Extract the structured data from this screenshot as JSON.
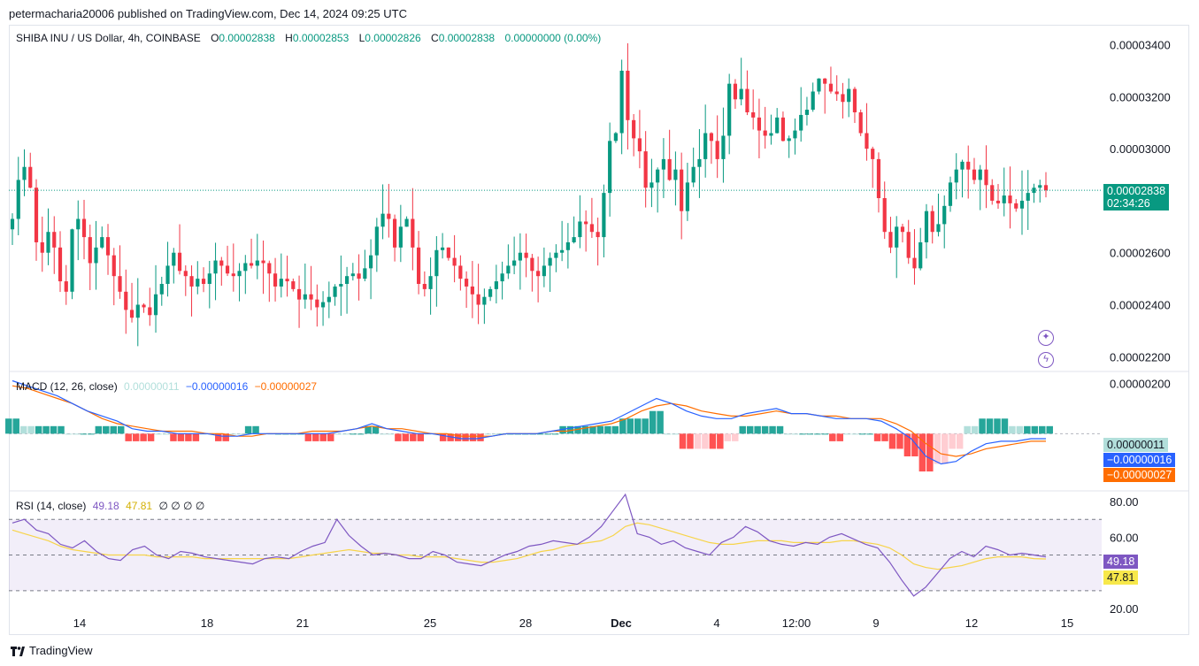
{
  "header": {
    "published": "petermacharia20006 published on TradingView.com, Dec 14, 2024 09:25 UTC"
  },
  "symbol": {
    "title": "SHIBA INU / US Dollar, 4h, COINBASE",
    "o_label": "O",
    "o": "0.00002838",
    "h_label": "H",
    "h": "0.00002853",
    "l_label": "L",
    "l": "0.00002826",
    "c_label": "C",
    "c": "0.00002838",
    "change": "0.00000000 (0.00%)"
  },
  "price_axis": {
    "ticks": [
      "0.00003400",
      "0.00003200",
      "0.00003000",
      "0.00002600",
      "0.00002400",
      "0.00002200"
    ],
    "last_price": "0.00002838",
    "countdown": "02:34:26"
  },
  "macd": {
    "title": "MACD (12, 26, close)",
    "hist": "0.00000011",
    "macd": "−0.00000016",
    "signal": "−0.00000027",
    "axis_tick": "0.00000200",
    "box_hist": "0.00000011",
    "box_macd": "−0.00000016",
    "box_signal": "−0.00000027"
  },
  "rsi": {
    "title": "RSI (14, close)",
    "value": "49.18",
    "ma": "47.81",
    "placeholders": "∅ ∅ ∅ ∅",
    "ticks": [
      "80.00",
      "60.00",
      "20.00"
    ],
    "box_value": "49.18",
    "box_ma": "47.81"
  },
  "time_axis": [
    "14",
    "18",
    "21",
    "25",
    "28",
    "Dec",
    "4",
    "12:00",
    "9",
    "12",
    "15"
  ],
  "footer": {
    "brand": "TradingView"
  },
  "colors": {
    "up": "#089981",
    "down": "#f23645",
    "macd": "#2962ff",
    "signal": "#ff6d00",
    "rsi": "#7e57c2",
    "rsi_ma": "#f7d44a",
    "hist_up_strong": "#26a69a",
    "hist_up_weak": "#b2dfdb",
    "hist_down_strong": "#ff5252",
    "hist_down_weak": "#ffcdd2"
  },
  "chart_data": [
    {
      "type": "candlestick",
      "title": "SHIBA INU / US Dollar, 4h, COINBASE",
      "ylim": [
        2.15e-05,
        3.47e-05
      ],
      "x_ticks": [
        "14",
        "18",
        "21",
        "25",
        "28",
        "Dec",
        "4",
        "12:00",
        "9",
        "12",
        "15"
      ],
      "candles_close": [
        2.73e-05,
        2.88e-05,
        2.93e-05,
        2.85e-05,
        2.64e-05,
        2.6e-05,
        2.68e-05,
        2.62e-05,
        2.49e-05,
        2.45e-05,
        2.69e-05,
        2.73e-05,
        2.66e-05,
        2.56e-05,
        2.62e-05,
        2.66e-05,
        2.59e-05,
        2.51e-05,
        2.45e-05,
        2.38e-05,
        2.35e-05,
        2.4e-05,
        2.39e-05,
        2.36e-05,
        2.44e-05,
        2.48e-05,
        2.55e-05,
        2.6e-05,
        2.53e-05,
        2.51e-05,
        2.47e-05,
        2.5e-05,
        2.48e-05,
        2.52e-05,
        2.57e-05,
        2.55e-05,
        2.52e-05,
        2.51e-05,
        2.53e-05,
        2.56e-05,
        2.55e-05,
        2.57e-05,
        2.56e-05,
        2.52e-05,
        2.47e-05,
        2.5e-05,
        2.49e-05,
        2.46e-05,
        2.42e-05,
        2.44e-05,
        2.42e-05,
        2.39e-05,
        2.41e-05,
        2.43e-05,
        2.47e-05,
        2.48e-05,
        2.51e-05,
        2.52e-05,
        2.5e-05,
        2.54e-05,
        2.59e-05,
        2.7e-05,
        2.75e-05,
        2.73e-05,
        2.62e-05,
        2.7e-05,
        2.73e-05,
        2.62e-05,
        2.48e-05,
        2.46e-05,
        2.51e-05,
        2.61e-05,
        2.62e-05,
        2.58e-05,
        2.55e-05,
        2.5e-05,
        2.47e-05,
        2.44e-05,
        2.4e-05,
        2.43e-05,
        2.46e-05,
        2.49e-05,
        2.52e-05,
        2.55e-05,
        2.57e-05,
        2.6e-05,
        2.58e-05,
        2.53e-05,
        2.51e-05,
        2.55e-05,
        2.58e-05,
        2.6e-05,
        2.61e-05,
        2.64e-05,
        2.66e-05,
        2.72e-05,
        2.71e-05,
        2.68e-05,
        2.66e-05,
        2.83e-05,
        3.03e-05,
        3.06e-05,
        3.3e-05,
        3.11e-05,
        3.04e-05,
        2.99e-05,
        2.85e-05,
        2.87e-05,
        2.92e-05,
        2.96e-05,
        2.88e-05,
        2.92e-05,
        2.76e-05,
        2.87e-05,
        2.93e-05,
        2.96e-05,
        3.06e-05,
        3.03e-05,
        2.96e-05,
        3.05e-05,
        3.25e-05,
        3.19e-05,
        3.23e-05,
        3.14e-05,
        3.12e-05,
        3.07e-05,
        3.05e-05,
        3.06e-05,
        3.12e-05,
        3.03e-05,
        3.04e-05,
        3.07e-05,
        3.13e-05,
        3.15e-05,
        3.22e-05,
        3.27e-05,
        3.25e-05,
        3.22e-05,
        3.21e-05,
        3.18e-05,
        3.23e-05,
        3.14e-05,
        3.06e-05,
        3e-05,
        2.96e-05,
        2.81e-05,
        2.68e-05,
        2.62e-05,
        2.7e-05,
        2.68e-05,
        2.58e-05,
        2.54e-05,
        2.64e-05,
        2.76e-05,
        2.68e-05,
        2.71e-05,
        2.78e-05,
        2.87e-05,
        2.92e-05,
        2.95e-05,
        2.92e-05,
        2.88e-05,
        2.92e-05,
        2.86e-05,
        2.8e-05,
        2.79e-05,
        2.82e-05,
        2.79e-05,
        2.77e-05,
        2.8e-05,
        2.83e-05,
        2.85e-05,
        2.86e-05,
        2.84e-05
      ]
    },
    {
      "type": "line",
      "title": "MACD (12, 26, close)",
      "series": [
        {
          "name": "MACD",
          "values": [
            2.1e-06,
            1.9e-06,
            1.7e-06,
            1.5e-06,
            1.2e-06,
            9e-07,
            7e-07,
            5e-07,
            2e-07,
            1e-07,
            1e-07,
            0.0,
            0.0,
            0.0,
            -1e-07,
            -1e-07,
            0.0,
            0.0,
            0.0,
            0.0,
            0.0,
            0.0,
            1e-07,
            2e-07,
            4e-07,
            2e-07,
            1e-07,
            0.0,
            0.0,
            -1e-07,
            -2e-07,
            -2e-07,
            -1e-07,
            0.0,
            0.0,
            0.0,
            1e-07,
            2e-07,
            3e-07,
            4e-07,
            5e-07,
            8e-07,
            1.1e-06,
            1.4e-06,
            1.2e-06,
            9e-07,
            7e-07,
            6e-07,
            6e-07,
            8e-07,
            9e-07,
            1e-06,
            8e-07,
            8e-07,
            7e-07,
            6e-07,
            6e-07,
            6e-07,
            5e-07,
            2e-07,
            -2e-07,
            -9e-07,
            -1.2e-06,
            -1.1e-06,
            -7e-07,
            -4e-07,
            -3e-07,
            -3e-07,
            -2e-07,
            -2e-07
          ]
        },
        {
          "name": "Signal",
          "values": [
            1.9e-06,
            1.8e-06,
            1.6e-06,
            1.4e-06,
            1.2e-06,
            9e-07,
            6e-07,
            4e-07,
            3e-07,
            2e-07,
            1e-07,
            1e-07,
            1e-07,
            0.0,
            0.0,
            -1e-07,
            -1e-07,
            0.0,
            0.0,
            0.0,
            1e-07,
            1e-07,
            1e-07,
            2e-07,
            3e-07,
            2e-07,
            2e-07,
            1e-07,
            0.0,
            0.0,
            -1e-07,
            -1e-07,
            -1e-07,
            0.0,
            0.0,
            0.0,
            1e-07,
            1e-07,
            2e-07,
            3e-07,
            4e-07,
            6e-07,
            9e-07,
            1.1e-06,
            1.2e-06,
            1.1e-06,
            9e-07,
            8e-07,
            7e-07,
            7e-07,
            8e-07,
            9e-07,
            8e-07,
            8e-07,
            7e-07,
            7e-07,
            6e-07,
            6e-07,
            6e-07,
            4e-07,
            1e-07,
            -4e-07,
            -8e-07,
            -9e-07,
            -8e-07,
            -6e-07,
            -5e-07,
            -4e-07,
            -3e-07,
            -3e-07
          ]
        }
      ]
    },
    {
      "type": "line",
      "title": "RSI (14, close)",
      "ylim": [
        20,
        85
      ],
      "series": [
        {
          "name": "RSI",
          "values": [
            68,
            70,
            64,
            62,
            56,
            54,
            58,
            52,
            48,
            47,
            53,
            55,
            50,
            48,
            52,
            51,
            49,
            48,
            47,
            46,
            45,
            48,
            49,
            48,
            52,
            55,
            57,
            70,
            61,
            55,
            50,
            51,
            50,
            48,
            48,
            52,
            50,
            46,
            45,
            44,
            47,
            50,
            52,
            55,
            56,
            58,
            57,
            56,
            60,
            66,
            75,
            84,
            62,
            60,
            56,
            58,
            54,
            52,
            50,
            57,
            60,
            66,
            63,
            58,
            56,
            55,
            57,
            56,
            60,
            62,
            59,
            56,
            54,
            46,
            36,
            27,
            32,
            40,
            48,
            52,
            49,
            55,
            53,
            50,
            51,
            50,
            49
          ]
        },
        {
          "name": "RSI MA",
          "values": [
            64,
            62,
            60,
            58,
            55,
            53,
            52,
            51,
            50,
            50,
            50,
            50,
            49,
            49,
            49,
            49,
            48,
            48,
            48,
            48,
            48,
            48,
            48,
            48,
            49,
            50,
            51,
            52,
            53,
            52,
            51,
            51,
            50,
            50,
            49,
            49,
            49,
            48,
            47,
            46,
            46,
            47,
            48,
            50,
            52,
            53,
            55,
            56,
            57,
            58,
            61,
            66,
            68,
            67,
            65,
            63,
            61,
            59,
            57,
            56,
            56,
            57,
            58,
            58,
            58,
            57,
            57,
            57,
            57,
            58,
            58,
            57,
            56,
            54,
            50,
            45,
            43,
            42,
            43,
            44,
            46,
            48,
            49,
            49,
            49,
            48,
            47.81
          ]
        }
      ],
      "reference_lines": [
        70,
        50,
        30
      ]
    }
  ]
}
